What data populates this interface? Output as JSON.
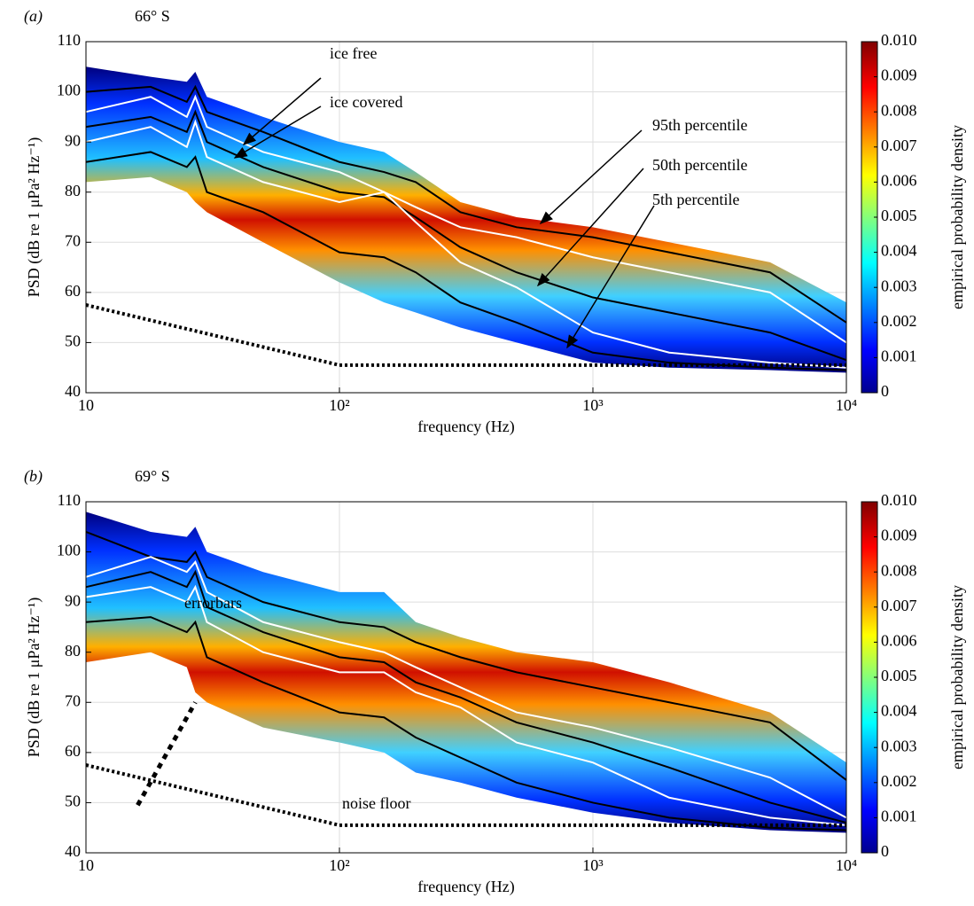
{
  "chart_data": [
    {
      "type": "density_line",
      "title": "(a)",
      "subtitle": "66° S",
      "xlabel": "frequency (Hz)",
      "ylabel": "PSD (dB re 1 μPa² Hz⁻¹)",
      "x": [
        10,
        18,
        25,
        27,
        30,
        50,
        100,
        150,
        200,
        300,
        500,
        1000,
        2000,
        5000,
        10000
      ],
      "log_x": true,
      "xlim": [
        10,
        10000
      ],
      "xticks": [
        10,
        {
          "value": 100,
          "label": "10²"
        },
        {
          "value": 1000,
          "label": "10³"
        },
        {
          "value": 10000,
          "label": "10⁴"
        }
      ],
      "ylim": [
        40,
        110
      ],
      "yticks": [
        40,
        50,
        60,
        70,
        80,
        90,
        100,
        110
      ],
      "grid": true,
      "density_band": {
        "upper": [
          105,
          103,
          102,
          104,
          99,
          95,
          90,
          88,
          84,
          78,
          75,
          73,
          70,
          66,
          58
        ],
        "lower": [
          82,
          83,
          80,
          78,
          76,
          70,
          62,
          58,
          56,
          53,
          50,
          46,
          45,
          44.5,
          44
        ]
      },
      "series": [
        {
          "color": "#000000",
          "values": [
            100,
            101,
            98,
            101,
            96,
            92,
            86,
            84,
            82,
            76,
            73,
            71,
            68,
            64,
            54
          ]
        },
        {
          "color": "#ffffff",
          "values": [
            96,
            99,
            95,
            99,
            93,
            88,
            84,
            80,
            77,
            73,
            71,
            67,
            64,
            60,
            50
          ]
        },
        {
          "color": "#000000",
          "values": [
            93,
            95,
            92,
            96,
            90,
            85,
            80,
            79,
            75,
            69,
            64,
            59,
            56,
            52,
            46.5
          ]
        },
        {
          "color": "#ffffff",
          "values": [
            90,
            93,
            89,
            94,
            87,
            82,
            78,
            80,
            74,
            66,
            61,
            52,
            48,
            46,
            45
          ]
        },
        {
          "color": "#000000",
          "values": [
            86,
            88,
            85,
            87,
            80,
            76,
            68,
            67,
            64,
            58,
            54,
            48,
            46,
            45,
            44.5
          ]
        },
        {
          "color": "#000000",
          "style": "dotted",
          "x": [
            10,
            100,
            10000
          ],
          "values": [
            57.5,
            45.5,
            45.5
          ]
        }
      ],
      "annotations": [
        "ice free",
        "ice covered",
        "95th percentile",
        "50th percentile",
        "5th percentile"
      ],
      "colorbar": {
        "label": "empirical probability density",
        "colormap": "jet",
        "clim": [
          0,
          0.01
        ],
        "cticks": [
          0,
          0.001,
          0.002,
          0.003,
          0.004,
          0.005,
          0.006,
          0.007,
          0.008,
          0.009,
          {
            "value": 0.01,
            "label": "0.010"
          }
        ]
      }
    },
    {
      "type": "density_line",
      "title": "(b)",
      "subtitle": "69° S",
      "xlabel": "frequency (Hz)",
      "ylabel": "PSD (dB re 1 μPa² Hz⁻¹)",
      "x": [
        10,
        18,
        25,
        27,
        30,
        50,
        100,
        150,
        200,
        300,
        500,
        1000,
        2000,
        5000,
        10000
      ],
      "log_x": true,
      "xlim": [
        10,
        10000
      ],
      "xticks": [
        10,
        {
          "value": 100,
          "label": "10²"
        },
        {
          "value": 1000,
          "label": "10³"
        },
        {
          "value": 10000,
          "label": "10⁴"
        }
      ],
      "ylim": [
        40,
        110
      ],
      "yticks": [
        40,
        50,
        60,
        70,
        80,
        90,
        100,
        110
      ],
      "grid": true,
      "density_band": {
        "upper": [
          108,
          104,
          103,
          105,
          100,
          96,
          92,
          92,
          86,
          83,
          80,
          78,
          74,
          68,
          58
        ],
        "lower": [
          78,
          80,
          77,
          72,
          70,
          65,
          62,
          60,
          56,
          54,
          51,
          48,
          46,
          44.5,
          44
        ]
      },
      "series": [
        {
          "color": "#000000",
          "values": [
            104,
            99,
            98,
            100,
            95,
            90,
            86,
            85,
            82,
            79,
            76,
            73,
            70,
            66,
            54.5
          ]
        },
        {
          "color": "#ffffff",
          "values": [
            95,
            99,
            96,
            98,
            92,
            86,
            82,
            80,
            77,
            73,
            68,
            65,
            61,
            55,
            47
          ]
        },
        {
          "color": "#000000",
          "values": [
            93,
            96,
            93,
            96,
            89,
            84,
            79,
            78,
            74,
            71,
            66,
            62,
            57,
            50,
            46
          ]
        },
        {
          "color": "#ffffff",
          "values": [
            91,
            93,
            90,
            93,
            86,
            80,
            76,
            76,
            72,
            69,
            62,
            58,
            51,
            47,
            45.5
          ]
        },
        {
          "color": "#000000",
          "values": [
            86,
            87,
            84,
            86,
            79,
            74,
            68,
            67,
            63,
            59,
            54,
            50,
            47,
            45,
            44.5
          ]
        },
        {
          "color": "#000000",
          "style": "dotted",
          "x": [
            10,
            100,
            10000
          ],
          "values": [
            57.5,
            45.5,
            45.5
          ]
        },
        {
          "color": "#000000",
          "style": "dashed",
          "x": [
            16,
            27
          ],
          "values": [
            49.5,
            70
          ]
        }
      ],
      "annotations": [
        "errorbars",
        "noise floor"
      ],
      "colorbar": {
        "label": "empirical probability density",
        "colormap": "jet",
        "clim": [
          0,
          0.01
        ],
        "cticks": [
          0,
          0.001,
          0.002,
          0.003,
          0.004,
          0.005,
          0.006,
          0.007,
          0.008,
          0.009,
          {
            "value": 0.01,
            "label": "0.010"
          }
        ]
      }
    }
  ]
}
